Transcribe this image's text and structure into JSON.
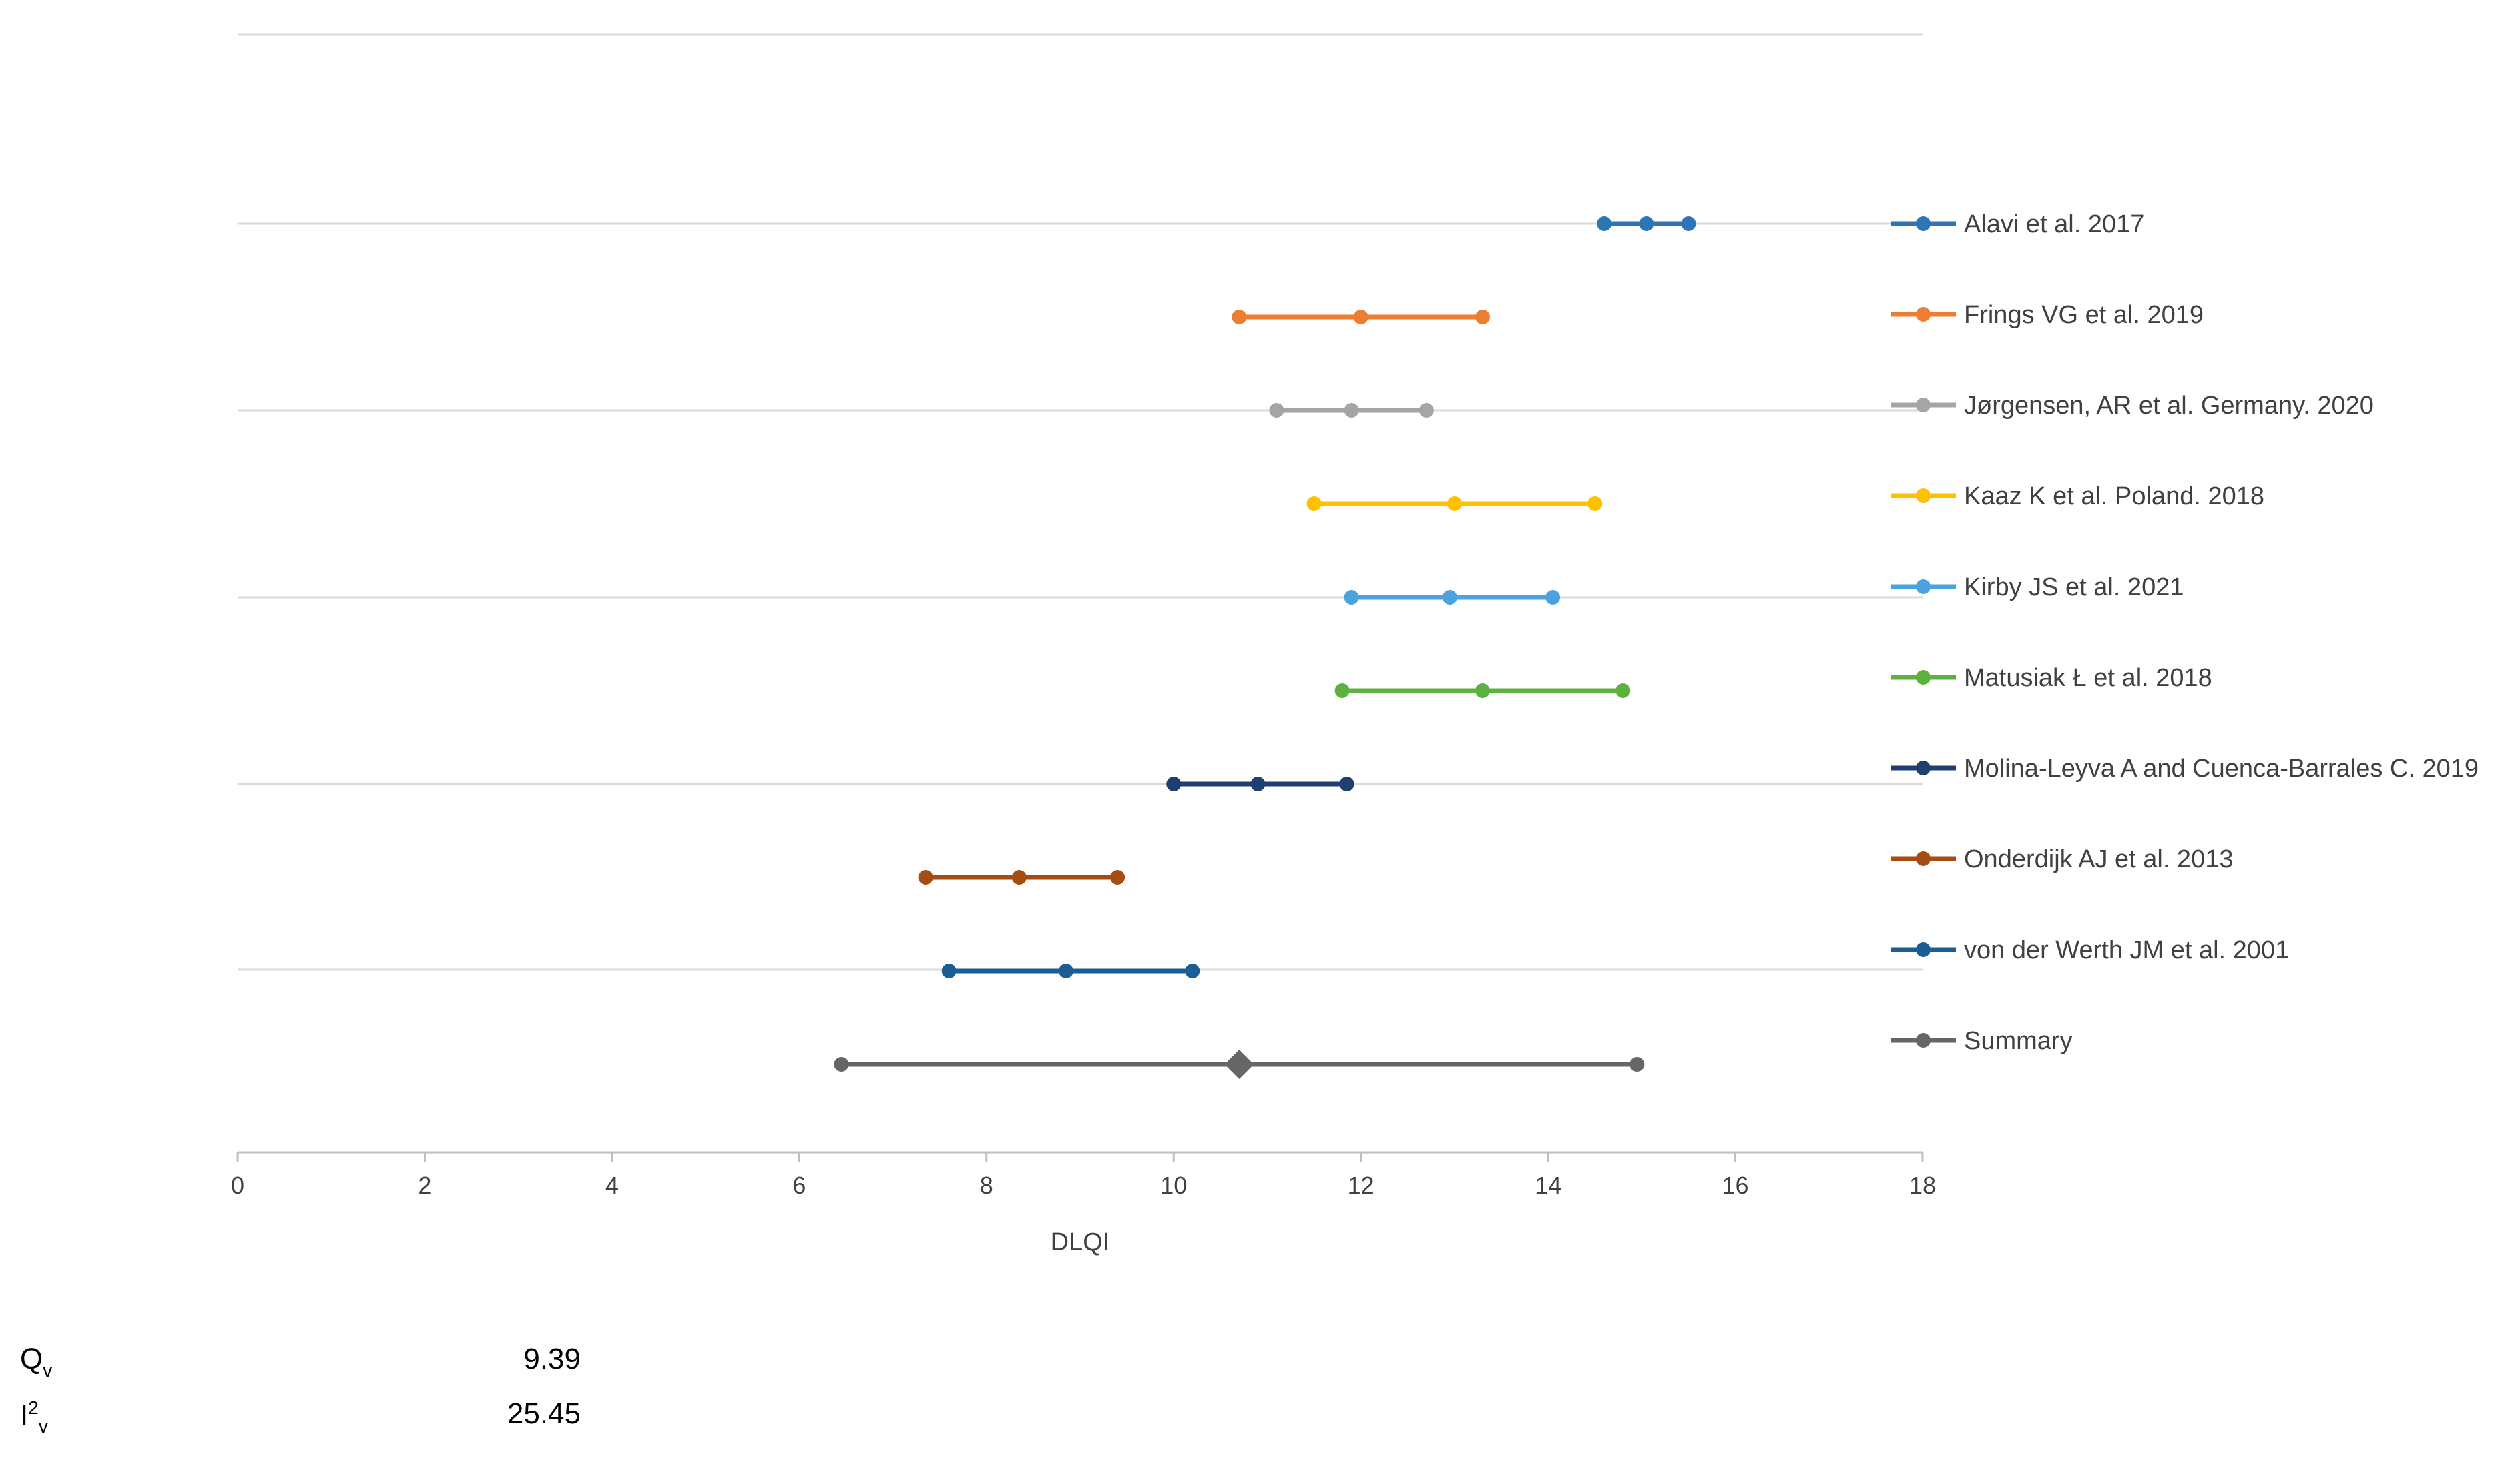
{
  "chart_data": {
    "type": "forest",
    "xlabel": "DLQI",
    "xlim": [
      0,
      18
    ],
    "xticks": [
      0,
      2,
      4,
      6,
      8,
      10,
      12,
      14,
      16,
      18
    ],
    "gridlines": "horizontal",
    "legend_position": "right",
    "studies": [
      {
        "name": "Alavi et al. 2017",
        "lower": 14.6,
        "mean": 15.05,
        "upper": 15.5,
        "color": "#2E75B6"
      },
      {
        "name": "Frings VG et al. 2019",
        "lower": 10.7,
        "mean": 12.0,
        "upper": 13.3,
        "color": "#ED7D31"
      },
      {
        "name": "Jørgensen, AR et al. Germany. 2020",
        "lower": 11.1,
        "mean": 11.9,
        "upper": 12.7,
        "color": "#A5A5A5"
      },
      {
        "name": "Kaaz K et al. Poland.  2018",
        "lower": 11.5,
        "mean": 13.0,
        "upper": 14.5,
        "color": "#FFC000"
      },
      {
        "name": "Kirby JS et al. 2021",
        "lower": 11.9,
        "mean": 12.95,
        "upper": 14.05,
        "color": "#4BA3DD"
      },
      {
        "name": "Matusiak Ł et al. 2018",
        "lower": 11.8,
        "mean": 13.3,
        "upper": 14.8,
        "color": "#5DB13E"
      },
      {
        "name": "Molina-Leyva A and Cuenca-Barrales C. 2019",
        "lower": 10.0,
        "mean": 10.9,
        "upper": 11.85,
        "color": "#1F3F70"
      },
      {
        "name": "Onderdijk AJ et al. 2013",
        "lower": 7.35,
        "mean": 8.35,
        "upper": 9.4,
        "color": "#A64B12"
      },
      {
        "name": "von der Werth JM et al. 2001",
        "lower": 7.6,
        "mean": 8.85,
        "upper": 10.2,
        "color": "#1B5E96"
      },
      {
        "name": "Summary",
        "lower": 6.45,
        "mean": 10.7,
        "upper": 14.95,
        "color": "#666666",
        "marker": "diamond"
      }
    ]
  },
  "stats": [
    {
      "symbol": "Q",
      "sup": "",
      "sub": "v",
      "value": "9.39"
    },
    {
      "symbol": "I",
      "sup": "2",
      "sub": "v",
      "value": "25.45"
    }
  ]
}
